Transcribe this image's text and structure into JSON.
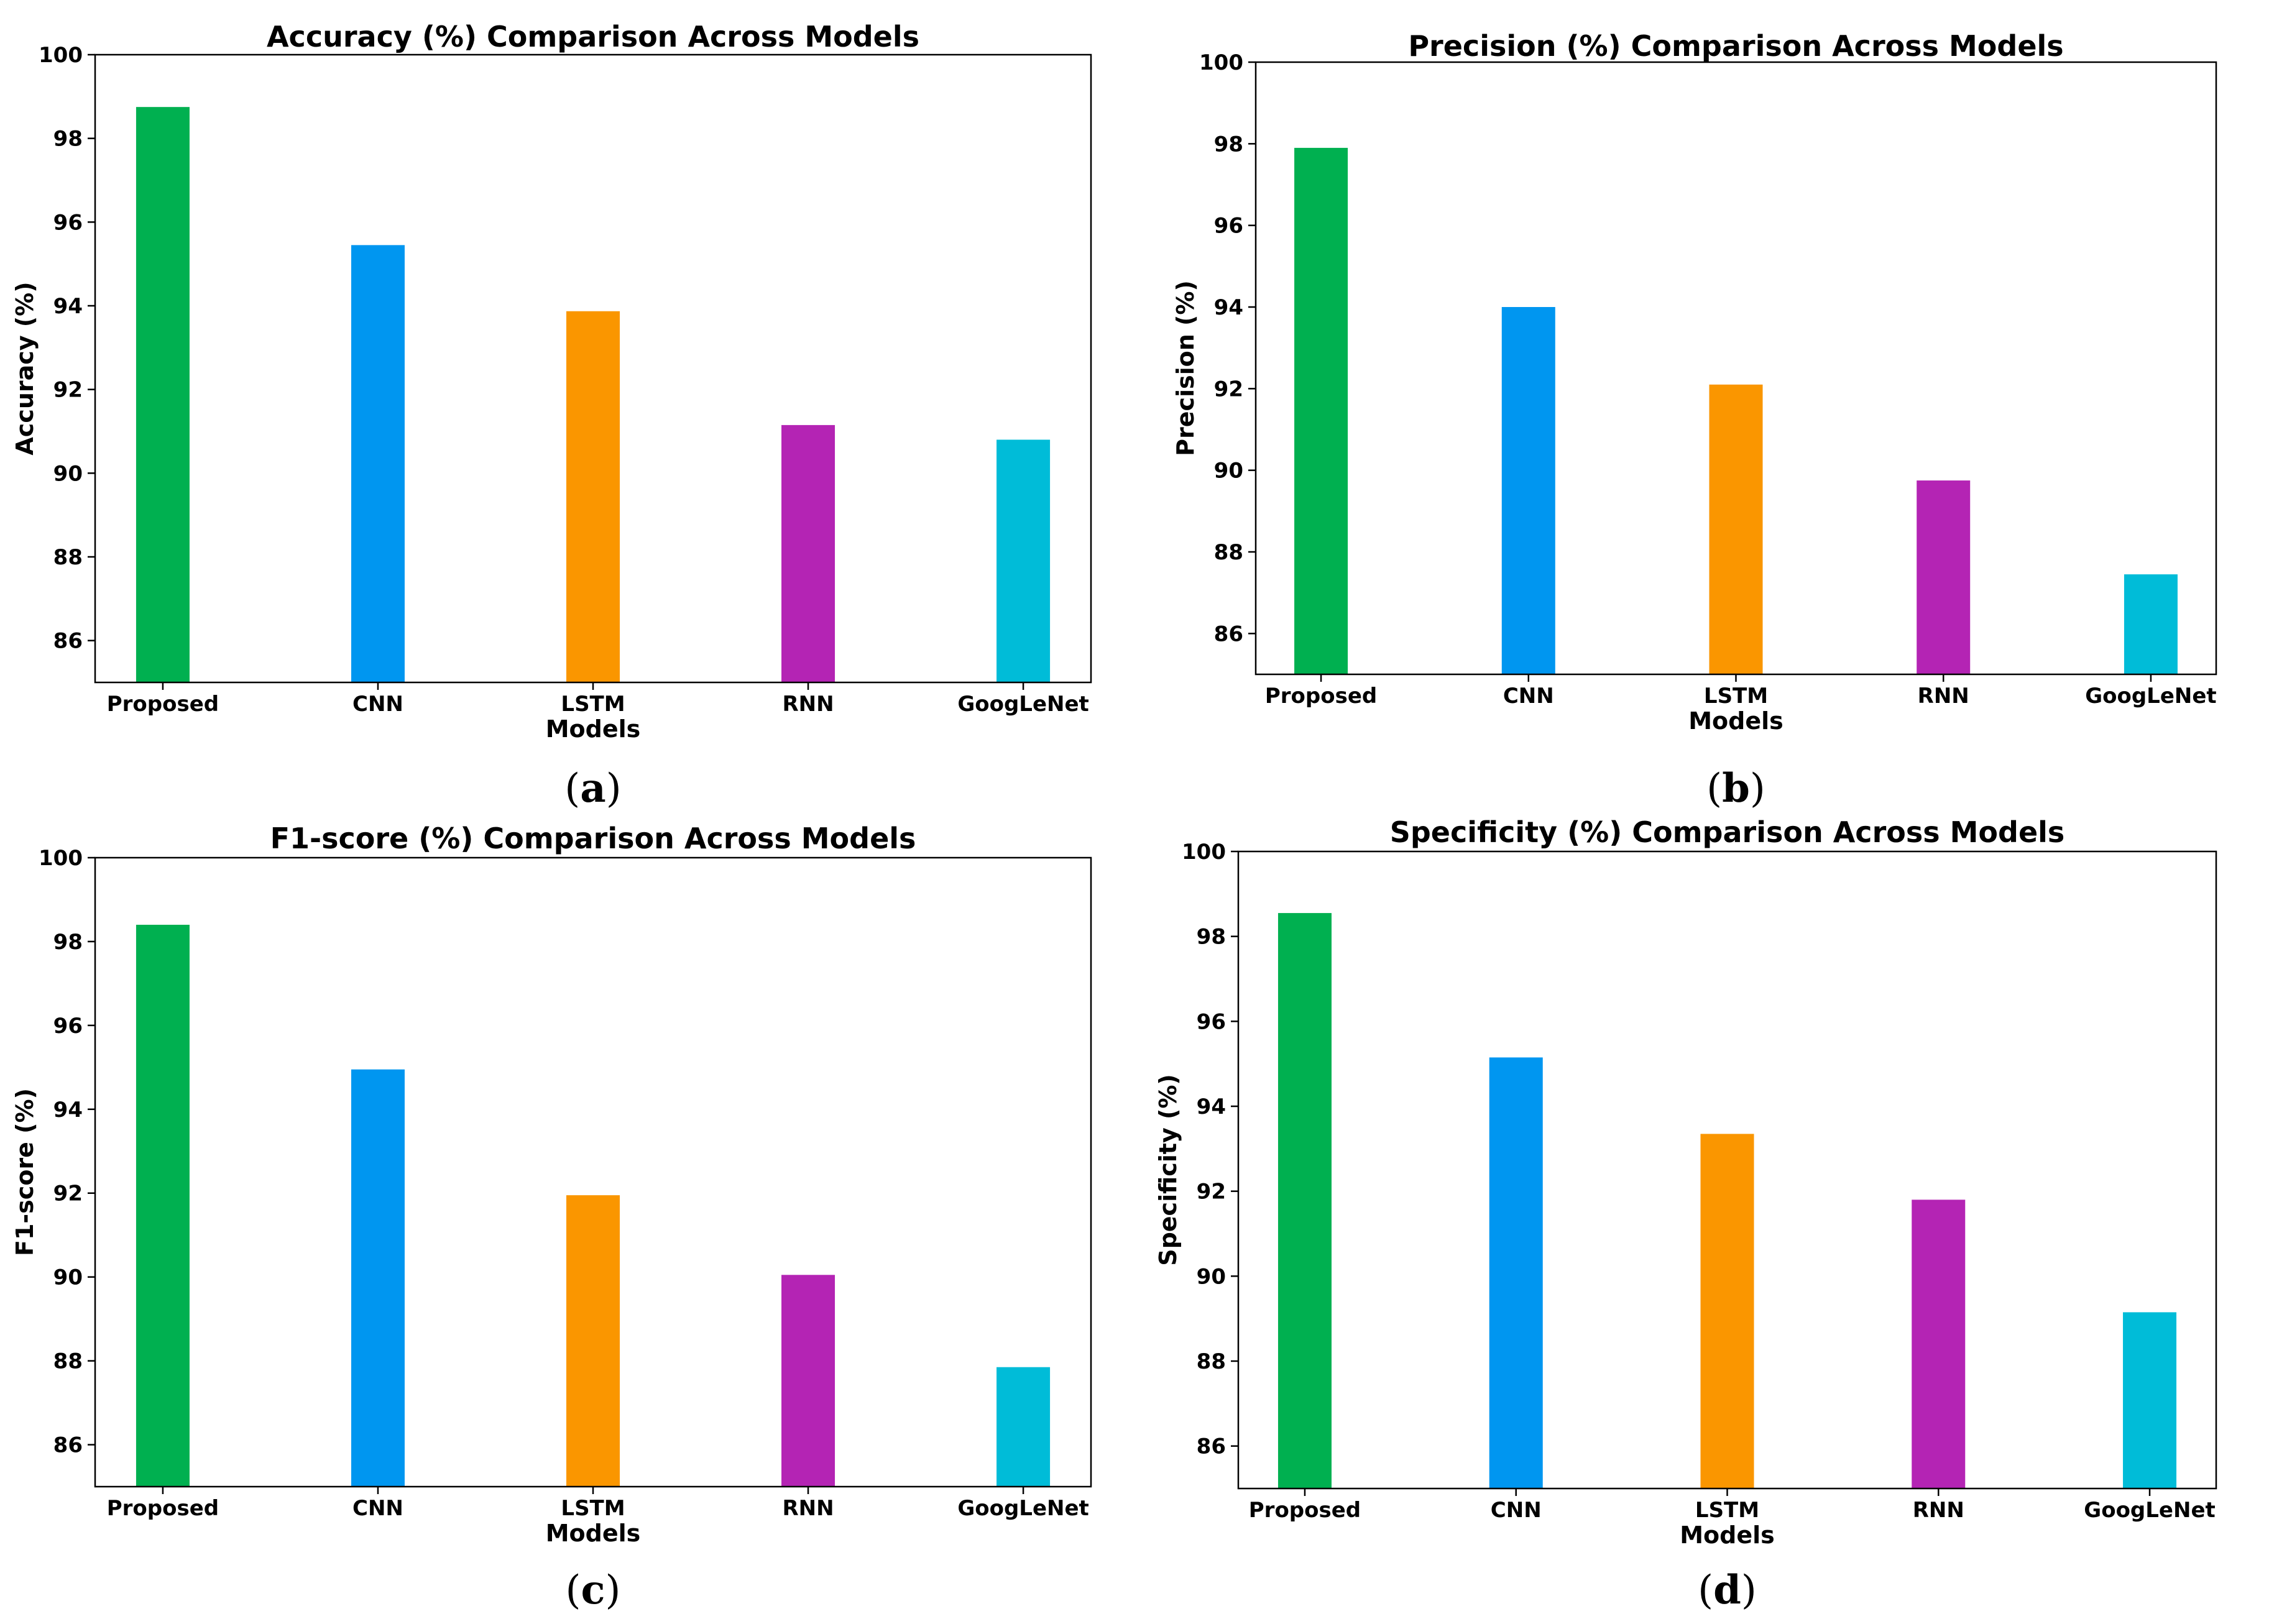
{
  "chart_data": [
    {
      "type": "bar",
      "title": "Accuracy (%) Comparison Across Models",
      "xlabel": "Models",
      "ylabel": "Accuracy (%)",
      "categories": [
        "Proposed",
        "CNN",
        "LSTM",
        "RNN",
        "GoogLeNet"
      ],
      "values": [
        98.75,
        95.45,
        93.87,
        91.15,
        90.8
      ],
      "colors": [
        "#00b050",
        "#0096f0",
        "#fa9600",
        "#b424b4",
        "#00bcd8"
      ],
      "ylim": [
        85,
        100
      ],
      "yticks": [
        86,
        88,
        90,
        92,
        94,
        96,
        98,
        100
      ],
      "caption": {
        "open": "(",
        "letter": "a",
        "close": ")"
      }
    },
    {
      "type": "bar",
      "title": "Precision (%) Comparison Across Models",
      "xlabel": "Models",
      "ylabel": "Precision (%)",
      "categories": [
        "Proposed",
        "CNN",
        "LSTM",
        "RNN",
        "GoogLeNet"
      ],
      "values": [
        97.9,
        94.0,
        92.1,
        89.75,
        87.45
      ],
      "colors": [
        "#00b050",
        "#0096f0",
        "#fa9600",
        "#b424b4",
        "#00bcd8"
      ],
      "ylim": [
        85,
        100
      ],
      "yticks": [
        86,
        88,
        90,
        92,
        94,
        96,
        98,
        100
      ],
      "caption": {
        "open": "(",
        "letter": "b",
        "close": ")"
      }
    },
    {
      "type": "bar",
      "title": "F1-score (%) Comparison Across Models",
      "xlabel": "Models",
      "ylabel": "F1-score (%)",
      "categories": [
        "Proposed",
        "CNN",
        "LSTM",
        "RNN",
        "GoogLeNet"
      ],
      "values": [
        98.4,
        94.95,
        91.95,
        90.05,
        87.85
      ],
      "colors": [
        "#00b050",
        "#0096f0",
        "#fa9600",
        "#b424b4",
        "#00bcd8"
      ],
      "ylim": [
        85,
        100
      ],
      "yticks": [
        86,
        88,
        90,
        92,
        94,
        96,
        98,
        100
      ],
      "caption": {
        "open": "(",
        "letter": "c",
        "close": ")"
      }
    },
    {
      "type": "bar",
      "title": "Specificity (%) Comparison Across Models",
      "xlabel": "Models",
      "ylabel": "Specificity (%)",
      "categories": [
        "Proposed",
        "CNN",
        "LSTM",
        "RNN",
        "GoogLeNet"
      ],
      "values": [
        98.55,
        95.15,
        93.35,
        91.8,
        89.15
      ],
      "colors": [
        "#00b050",
        "#0096f0",
        "#fa9600",
        "#b424b4",
        "#00bcd8"
      ],
      "ylim": [
        85,
        100
      ],
      "yticks": [
        86,
        88,
        90,
        92,
        94,
        96,
        98,
        100
      ],
      "caption": {
        "open": "(",
        "letter": "d",
        "close": ")"
      }
    }
  ]
}
